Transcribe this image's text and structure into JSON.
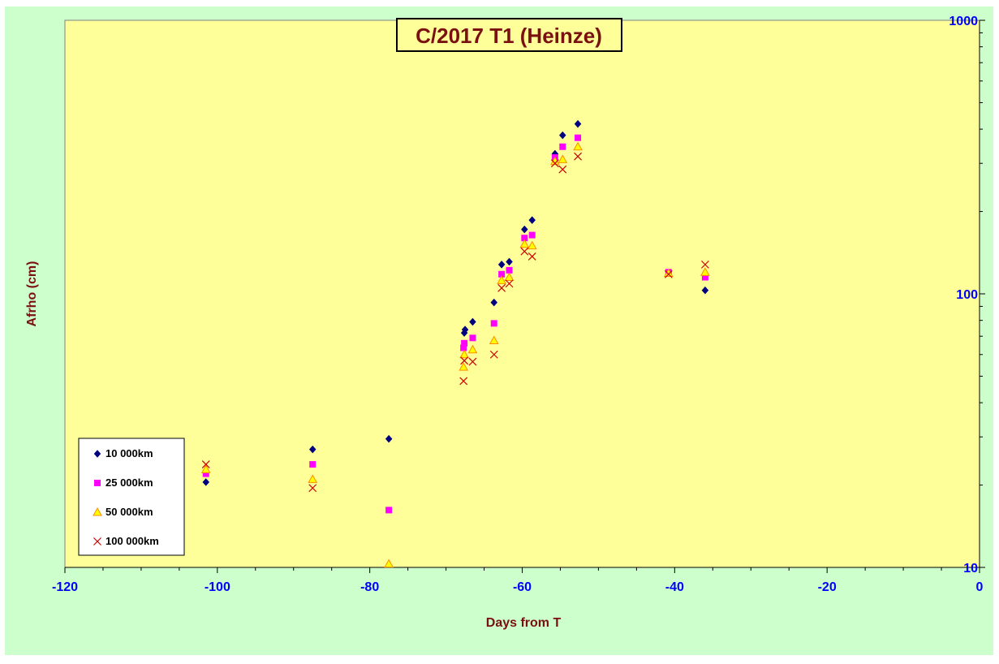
{
  "chart_data": {
    "type": "scatter",
    "title": "C/2017 T1 (Heinze)",
    "xlabel": "Days from T",
    "ylabel": "Afrho (cm)",
    "xlim": [
      -120,
      0
    ],
    "ylim": [
      10,
      1000
    ],
    "yscale": "log",
    "y_axis_side": "right",
    "grid": false,
    "legend_position": "bottom-left",
    "x_ticks": [
      "-120",
      "-100",
      "-80",
      "-60",
      "-40",
      "-20",
      "0"
    ],
    "y_ticks": [
      "10",
      "100",
      "1000"
    ],
    "colors": {
      "outer_background": "#ccffcc",
      "plot_background": "#ffff99",
      "tick_labels": "#0000ff",
      "titles": "#7a1010"
    },
    "series": [
      {
        "name": "10 000km",
        "marker": "diamond",
        "color": "#000080",
        "points": [
          [
            -101.5,
            20.5
          ],
          [
            -87.5,
            27
          ],
          [
            -77.5,
            29.5
          ],
          [
            -67.6,
            72
          ],
          [
            -67.5,
            74
          ],
          [
            -66.5,
            79
          ],
          [
            -63.7,
            93
          ],
          [
            -62.7,
            128
          ],
          [
            -61.7,
            131
          ],
          [
            -59.7,
            172
          ],
          [
            -58.7,
            186
          ],
          [
            -55.7,
            325
          ],
          [
            -54.7,
            380
          ],
          [
            -52.7,
            418
          ],
          [
            -36,
            103
          ]
        ]
      },
      {
        "name": "25 000km",
        "marker": "square",
        "color": "#ff00ff",
        "points": [
          [
            -101.5,
            22
          ],
          [
            -87.5,
            23.8
          ],
          [
            -77.5,
            16.2
          ],
          [
            -67.7,
            63.5
          ],
          [
            -67.6,
            66
          ],
          [
            -66.5,
            69
          ],
          [
            -63.7,
            78
          ],
          [
            -62.7,
            118
          ],
          [
            -61.7,
            122
          ],
          [
            -59.7,
            160
          ],
          [
            -58.7,
            164
          ],
          [
            -55.7,
            315
          ],
          [
            -54.7,
            345
          ],
          [
            -52.7,
            372
          ],
          [
            -40.8,
            120
          ],
          [
            -36,
            115
          ]
        ]
      },
      {
        "name": "50 000km",
        "marker": "triangle",
        "color": "#ff8c00",
        "points": [
          [
            -101.5,
            22.8
          ],
          [
            -87.5,
            21
          ],
          [
            -77.5,
            10.3
          ],
          [
            -67.7,
            54
          ],
          [
            -67.6,
            60
          ],
          [
            -66.5,
            62.5
          ],
          [
            -63.7,
            67.5
          ],
          [
            -62.7,
            112
          ],
          [
            -61.7,
            115
          ],
          [
            -59.7,
            152
          ],
          [
            -58.7,
            150
          ],
          [
            -55.7,
            305
          ],
          [
            -54.7,
            310
          ],
          [
            -52.7,
            345
          ],
          [
            -40.8,
            119
          ],
          [
            -36,
            120
          ]
        ]
      },
      {
        "name": "100 000km",
        "marker": "cross",
        "color": "#cc0000",
        "points": [
          [
            -101.5,
            23.8
          ],
          [
            -87.5,
            19.5
          ],
          [
            -67.7,
            48
          ],
          [
            -67.6,
            57
          ],
          [
            -66.5,
            56.5
          ],
          [
            -63.7,
            60
          ],
          [
            -62.7,
            105
          ],
          [
            -61.7,
            109
          ],
          [
            -59.7,
            143
          ],
          [
            -58.7,
            137
          ],
          [
            -55.7,
            300
          ],
          [
            -54.7,
            285
          ],
          [
            -52.7,
            318
          ],
          [
            -40.8,
            118
          ],
          [
            -36,
            128
          ]
        ]
      }
    ]
  }
}
